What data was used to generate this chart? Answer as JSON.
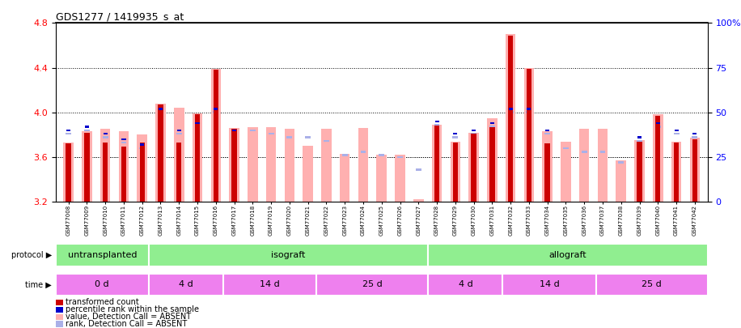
{
  "title": "GDS1277 / 1419935_s_at",
  "samples": [
    "GSM77008",
    "GSM77009",
    "GSM77010",
    "GSM77011",
    "GSM77012",
    "GSM77013",
    "GSM77014",
    "GSM77015",
    "GSM77016",
    "GSM77017",
    "GSM77018",
    "GSM77019",
    "GSM77020",
    "GSM77021",
    "GSM77022",
    "GSM77023",
    "GSM77024",
    "GSM77025",
    "GSM77026",
    "GSM77027",
    "GSM77028",
    "GSM77029",
    "GSM77030",
    "GSM77031",
    "GSM77032",
    "GSM77033",
    "GSM77034",
    "GSM77035",
    "GSM77036",
    "GSM77037",
    "GSM77038",
    "GSM77039",
    "GSM77040",
    "GSM77041",
    "GSM77042"
  ],
  "transformed_count": [
    3.72,
    3.82,
    3.73,
    3.69,
    3.73,
    4.07,
    3.73,
    3.98,
    4.38,
    3.85,
    3.86,
    3.86,
    3.84,
    3.69,
    3.84,
    3.62,
    3.85,
    3.61,
    3.61,
    3.21,
    3.88,
    3.73,
    3.81,
    3.87,
    4.69,
    4.39,
    3.72,
    3.73,
    3.84,
    3.84,
    3.56,
    3.74,
    3.97,
    3.73,
    3.76
  ],
  "percentile_rank": [
    40,
    42,
    38,
    35,
    32,
    52,
    40,
    44,
    52,
    40,
    42,
    40,
    38,
    38,
    36,
    28,
    30,
    28,
    27,
    20,
    45,
    38,
    40,
    44,
    52,
    52,
    40,
    32,
    30,
    30,
    24,
    36,
    44,
    40,
    38
  ],
  "absent_value": [
    3.73,
    3.83,
    3.85,
    3.83,
    3.8,
    4.08,
    4.04,
    3.99,
    4.39,
    3.86,
    3.87,
    3.87,
    3.85,
    3.7,
    3.85,
    3.63,
    3.86,
    3.62,
    3.62,
    3.22,
    3.89,
    3.74,
    3.82,
    3.95,
    4.7,
    4.4,
    3.83,
    3.74,
    3.85,
    3.85,
    3.57,
    3.75,
    3.98,
    3.74,
    3.77
  ],
  "absent_rank": [
    38,
    40,
    36,
    33,
    30,
    50,
    38,
    42,
    50,
    38,
    40,
    38,
    36,
    36,
    34,
    26,
    28,
    26,
    25,
    18,
    43,
    36,
    38,
    42,
    50,
    50,
    38,
    30,
    28,
    28,
    22,
    34,
    42,
    38,
    36
  ],
  "is_absent": [
    false,
    false,
    false,
    false,
    false,
    false,
    false,
    false,
    false,
    false,
    true,
    true,
    true,
    true,
    true,
    true,
    true,
    true,
    true,
    true,
    false,
    false,
    false,
    false,
    false,
    false,
    false,
    true,
    true,
    true,
    true,
    false,
    false,
    false,
    false
  ],
  "ymin": 3.2,
  "ymax": 4.8,
  "yticks_left": [
    3.2,
    3.6,
    4.0,
    4.4,
    4.8
  ],
  "yticks_right": [
    0,
    25,
    50,
    75,
    100
  ],
  "yticks_right_labels": [
    "0",
    "25",
    "50",
    "75",
    "100%"
  ],
  "color_red": "#cc0000",
  "color_pink": "#ffb0b0",
  "color_blue": "#0000cc",
  "color_lightblue": "#aab0e8",
  "color_green": "#90ee90",
  "color_magenta": "#ee80ee",
  "protocol_groups": [
    {
      "label": "untransplanted",
      "start": 0,
      "end": 5
    },
    {
      "label": "isograft",
      "start": 5,
      "end": 20
    },
    {
      "label": "allograft",
      "start": 20,
      "end": 35
    }
  ],
  "time_groups": [
    {
      "label": "0 d",
      "start": 0,
      "end": 5
    },
    {
      "label": "4 d",
      "start": 5,
      "end": 9
    },
    {
      "label": "14 d",
      "start": 9,
      "end": 14
    },
    {
      "label": "25 d",
      "start": 14,
      "end": 20
    },
    {
      "label": "4 d",
      "start": 20,
      "end": 24
    },
    {
      "label": "14 d",
      "start": 24,
      "end": 29
    },
    {
      "label": "25 d",
      "start": 29,
      "end": 35
    }
  ],
  "rank_scale_max": 100
}
